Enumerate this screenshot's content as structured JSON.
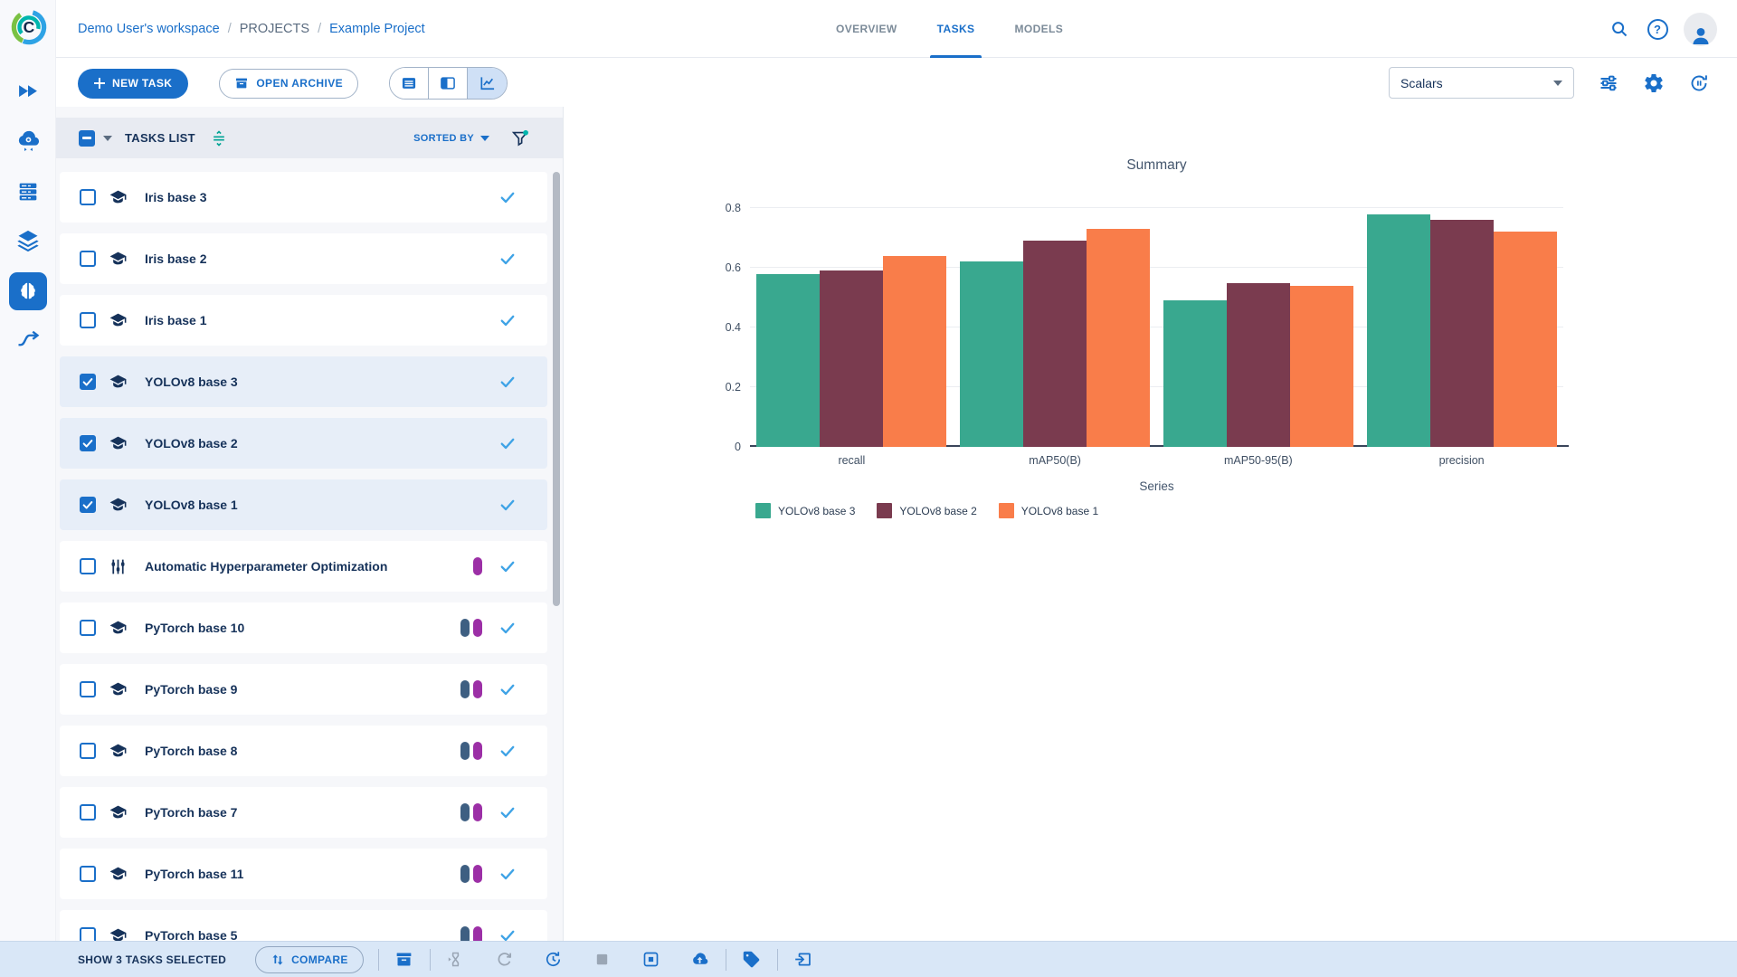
{
  "topbar": {
    "breadcrumb": {
      "workspace": "Demo User's workspace",
      "separator": "/",
      "section": "PROJECTS",
      "project": "Example Project"
    },
    "tabs": [
      {
        "label": "OVERVIEW",
        "active": false
      },
      {
        "label": "TASKS",
        "active": true
      },
      {
        "label": "MODELS",
        "active": false
      }
    ]
  },
  "toolbar": {
    "new_task_label": "NEW TASK",
    "open_archive_label": "OPEN ARCHIVE",
    "metric_selector_value": "Scalars"
  },
  "tasks_panel": {
    "header": {
      "title": "TASKS LIST",
      "sorted_by_label": "SORTED BY"
    },
    "items": [
      {
        "name": "Iris base 3",
        "selected": false,
        "icon": "training",
        "tags": []
      },
      {
        "name": "Iris base 2",
        "selected": false,
        "icon": "training",
        "tags": []
      },
      {
        "name": "Iris base 1",
        "selected": false,
        "icon": "training",
        "tags": []
      },
      {
        "name": "YOLOv8 base 3",
        "selected": true,
        "icon": "training",
        "tags": []
      },
      {
        "name": "YOLOv8 base 2",
        "selected": true,
        "icon": "training",
        "tags": []
      },
      {
        "name": "YOLOv8 base 1",
        "selected": true,
        "icon": "training",
        "tags": []
      },
      {
        "name": "Automatic Hyperparameter Optimization",
        "selected": false,
        "icon": "hpo",
        "tags": [
          "purple"
        ]
      },
      {
        "name": "PyTorch base 10",
        "selected": false,
        "icon": "training",
        "tags": [
          "navy",
          "purple"
        ]
      },
      {
        "name": "PyTorch base 9",
        "selected": false,
        "icon": "training",
        "tags": [
          "navy",
          "purple"
        ]
      },
      {
        "name": "PyTorch base 8",
        "selected": false,
        "icon": "training",
        "tags": [
          "navy",
          "purple"
        ]
      },
      {
        "name": "PyTorch base 7",
        "selected": false,
        "icon": "training",
        "tags": [
          "navy",
          "purple"
        ]
      },
      {
        "name": "PyTorch base 11",
        "selected": false,
        "icon": "training",
        "tags": [
          "navy",
          "purple"
        ]
      },
      {
        "name": "PyTorch base 5",
        "selected": false,
        "icon": "training",
        "tags": [
          "navy",
          "purple"
        ]
      }
    ],
    "tag_colors": {
      "navy": "#3e5f82",
      "purple": "#9c2fa6"
    }
  },
  "chart_data": {
    "type": "bar",
    "title": "Summary",
    "xlabel": "Series",
    "ylabel": "",
    "categories": [
      "recall",
      "mAP50(B)",
      "mAP50-95(B)",
      "precision"
    ],
    "series": [
      {
        "name": "YOLOv8 base 3",
        "color": "#39a88f",
        "values": [
          0.58,
          0.62,
          0.49,
          0.78
        ]
      },
      {
        "name": "YOLOv8 base 2",
        "color": "#7a3b4f",
        "values": [
          0.59,
          0.69,
          0.55,
          0.76
        ]
      },
      {
        "name": "YOLOv8 base 1",
        "color": "#f97d4a",
        "values": [
          0.64,
          0.73,
          0.54,
          0.72
        ]
      }
    ],
    "ylim": [
      0,
      0.8
    ],
    "yticks": [
      0,
      0.2,
      0.4,
      0.6,
      0.8
    ],
    "grid": true,
    "legend_position": "bottom-left"
  },
  "footer": {
    "selection_label": "SHOW 3 TASKS SELECTED",
    "compare_label": "COMPARE",
    "action_groups": [
      [
        "archive"
      ],
      [
        "enqueue",
        "reset",
        "retry",
        "abort",
        "abort-all-children",
        "publish"
      ],
      [
        "add-tag"
      ],
      [
        "move-to-project"
      ]
    ],
    "disabled_actions": [
      "enqueue",
      "reset",
      "abort"
    ]
  },
  "icons": [
    "clearml-logo",
    "projects-icon",
    "serving-icon",
    "workers-queues-icon",
    "datasets-icon",
    "experiments-icon",
    "pipelines-icon",
    "search-icon",
    "help-icon",
    "avatar",
    "plus-icon",
    "archive-icon",
    "table-view-icon",
    "split-view-icon",
    "chart-view-icon",
    "tune-icon",
    "gear-icon",
    "auto-refresh-icon",
    "sort-icon",
    "filter-icon",
    "checkmark-icon",
    "compare-icon",
    "enqueue-icon",
    "reset-icon",
    "retry-icon",
    "abort-icon",
    "abort-all-children-icon",
    "publish-icon",
    "tag-icon",
    "move-to-project-icon"
  ],
  "colors": {
    "primary_blue": "#1a6fc9",
    "selected_row_bg": "#e7eef8",
    "footer_bg": "#d9e7f7",
    "check_blue": "#3fa3e6"
  }
}
